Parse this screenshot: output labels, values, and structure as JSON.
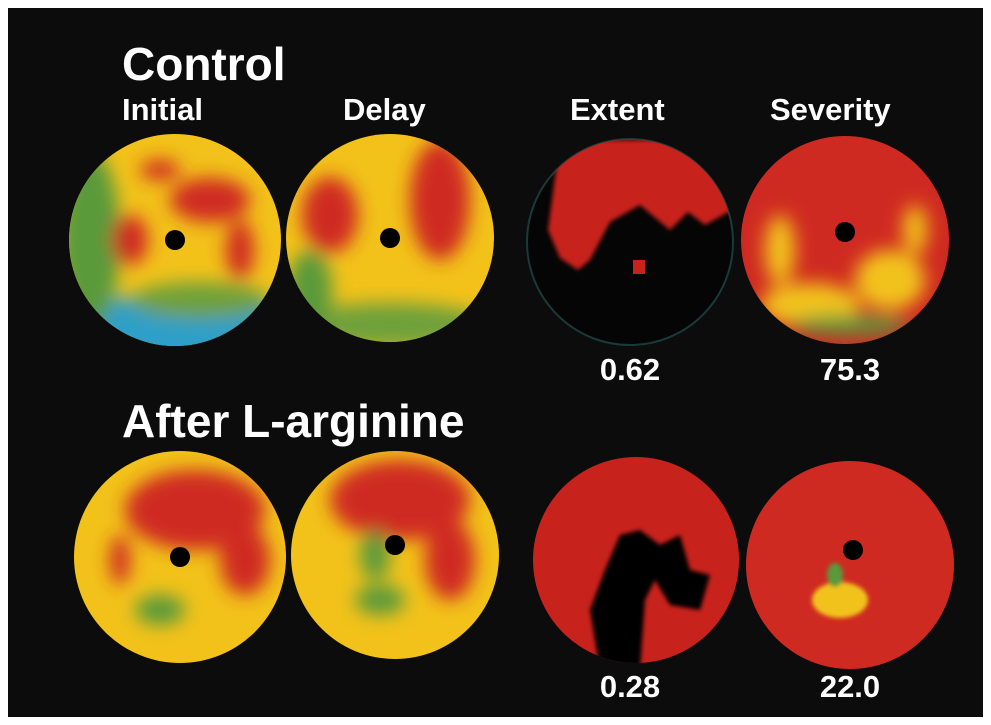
{
  "columns": [
    "Initial",
    "Delay",
    "Extent",
    "Severity"
  ],
  "sections": [
    {
      "title": "Control",
      "extent": "0.62",
      "severity": "75.3"
    },
    {
      "title": "After L-arginine",
      "extent": "0.28",
      "severity": "22.0"
    }
  ]
}
